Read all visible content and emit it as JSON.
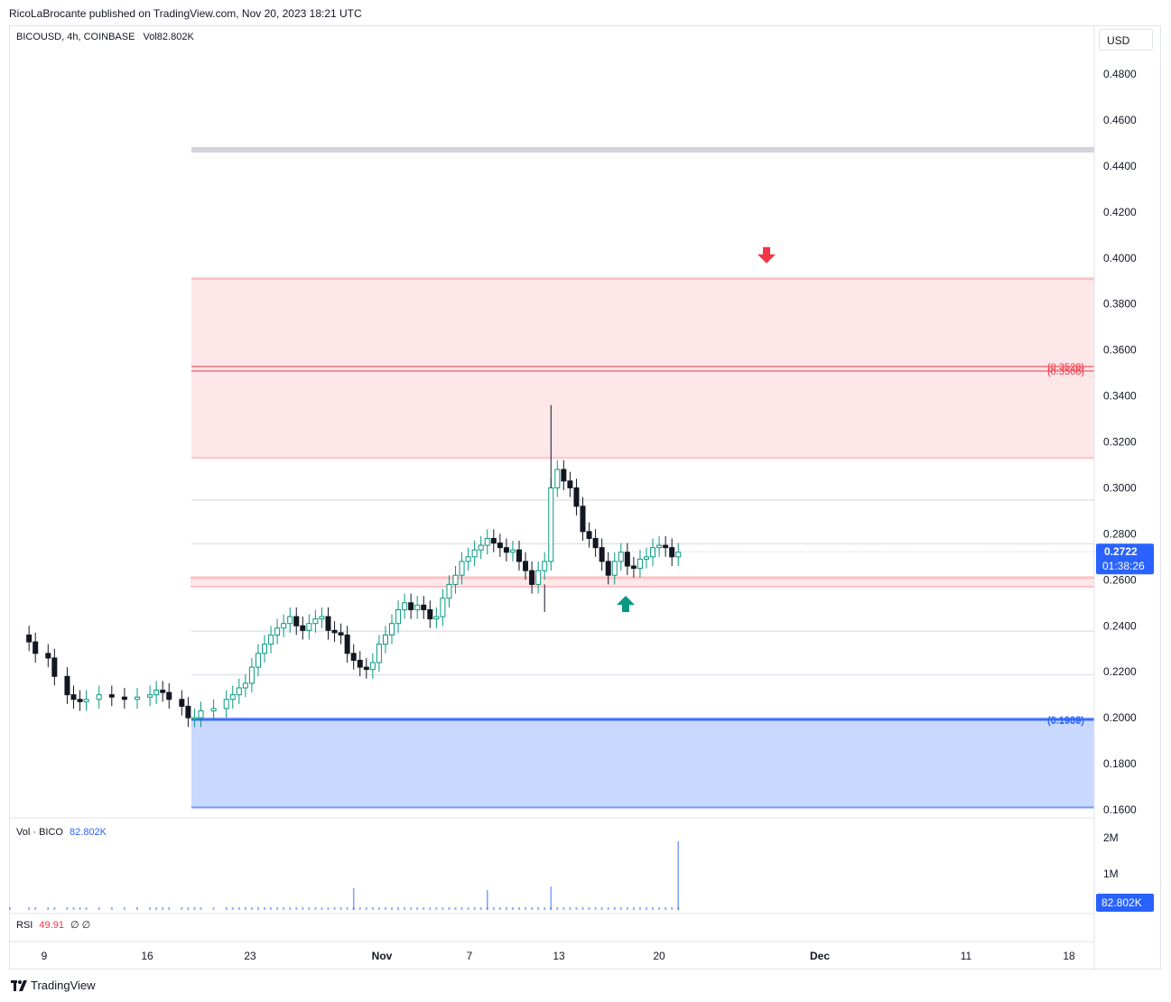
{
  "header": {
    "published_text": "RicoLaBrocante published on TradingView.com, Nov 20, 2023 18:21 UTC"
  },
  "legend": {
    "symbol": "BICOUSD, 4h, COINBASE",
    "volume_label": "Vol",
    "volume_value": "82.802K"
  },
  "price_axis": {
    "currency": "USD",
    "last_price": "0.2722",
    "countdown": "01:38:26"
  },
  "volume_pane": {
    "label": "Vol · BICO",
    "value": "82.802K",
    "ticks": [
      "2M",
      "1M"
    ],
    "last_badge": "82.802K"
  },
  "rsi_pane": {
    "label": "RSI",
    "value": "49.91",
    "extra": "∅ ∅"
  },
  "footer": {
    "brand": "TradingView"
  },
  "colors": {
    "up": "#089981",
    "down": "#131722",
    "resistance_zone": "#f23645",
    "support_zone": "#2962ff",
    "badge": "#2962ff"
  },
  "chart_data": {
    "type": "candlestick",
    "title": "",
    "x_ticks": [
      "9",
      "16",
      "23",
      "Nov",
      "7",
      "13",
      "20",
      "Dec",
      "11",
      "18"
    ],
    "y_ticks": [
      "0.4800",
      "0.4600",
      "0.4400",
      "0.4200",
      "0.4000",
      "0.3800",
      "0.3600",
      "0.3400",
      "0.3200",
      "0.3000",
      "0.2800",
      "0.2600",
      "0.2400",
      "0.2200",
      "0.2000",
      "0.1800",
      "0.1600"
    ],
    "ylim": [
      0.155,
      0.5
    ],
    "grid": false,
    "price_path": [
      [
        10,
        0.236
      ],
      [
        13,
        0.233
      ],
      [
        14,
        0.228
      ],
      [
        16,
        0.226
      ],
      [
        17,
        0.218
      ],
      [
        19,
        0.21
      ],
      [
        20,
        0.208
      ],
      [
        21,
        0.207
      ],
      [
        22,
        0.208
      ],
      [
        24,
        0.21
      ],
      [
        26,
        0.209
      ],
      [
        28,
        0.208
      ],
      [
        30,
        0.209
      ],
      [
        32,
        0.21
      ],
      [
        33,
        0.212
      ],
      [
        34,
        0.211
      ],
      [
        35,
        0.208
      ],
      [
        37,
        0.205
      ],
      [
        38,
        0.2
      ],
      [
        39,
        0.2
      ],
      [
        40,
        0.203
      ],
      [
        42,
        0.204
      ],
      [
        44,
        0.208
      ],
      [
        45,
        0.21
      ],
      [
        46,
        0.213
      ],
      [
        47,
        0.215
      ],
      [
        48,
        0.222
      ],
      [
        49,
        0.228
      ],
      [
        50,
        0.232
      ],
      [
        51,
        0.236
      ],
      [
        52,
        0.239
      ],
      [
        53,
        0.241
      ],
      [
        54,
        0.244
      ],
      [
        55,
        0.24
      ],
      [
        56,
        0.238
      ],
      [
        57,
        0.241
      ],
      [
        58,
        0.243
      ],
      [
        59,
        0.244
      ],
      [
        60,
        0.238
      ],
      [
        61,
        0.237
      ],
      [
        62,
        0.236
      ],
      [
        63,
        0.228
      ],
      [
        64,
        0.225
      ],
      [
        65,
        0.222
      ],
      [
        66,
        0.221
      ],
      [
        67,
        0.224
      ],
      [
        68,
        0.232
      ],
      [
        69,
        0.236
      ],
      [
        70,
        0.241
      ],
      [
        71,
        0.247
      ],
      [
        72,
        0.25
      ],
      [
        73,
        0.247
      ],
      [
        74,
        0.249
      ],
      [
        75,
        0.247
      ],
      [
        76,
        0.243
      ],
      [
        77,
        0.244
      ],
      [
        78,
        0.252
      ],
      [
        79,
        0.258
      ],
      [
        80,
        0.262
      ],
      [
        81,
        0.268
      ],
      [
        82,
        0.27
      ],
      [
        83,
        0.273
      ],
      [
        84,
        0.275
      ],
      [
        85,
        0.278
      ],
      [
        86,
        0.276
      ],
      [
        87,
        0.274
      ],
      [
        88,
        0.272
      ],
      [
        89,
        0.273
      ],
      [
        90,
        0.268
      ],
      [
        91,
        0.264
      ],
      [
        92,
        0.258
      ],
      [
        93,
        0.264
      ],
      [
        94,
        0.268
      ],
      [
        95,
        0.3
      ],
      [
        96,
        0.308
      ],
      [
        97,
        0.303
      ],
      [
        98,
        0.3
      ],
      [
        99,
        0.292
      ],
      [
        100,
        0.281
      ],
      [
        101,
        0.278
      ],
      [
        102,
        0.274
      ],
      [
        103,
        0.268
      ],
      [
        104,
        0.262
      ],
      [
        105,
        0.268
      ],
      [
        106,
        0.272
      ],
      [
        107,
        0.266
      ],
      [
        108,
        0.265
      ],
      [
        109,
        0.269
      ],
      [
        110,
        0.27
      ],
      [
        111,
        0.274
      ],
      [
        112,
        0.275
      ],
      [
        113,
        0.274
      ],
      [
        114,
        0.27
      ],
      [
        115,
        0.272
      ]
    ],
    "spikes": [
      {
        "index": 95,
        "high": 0.336
      },
      {
        "index": 94,
        "low": 0.246
      }
    ],
    "zones": [
      {
        "name": "resistance",
        "from": 0.313,
        "to": 0.391
      },
      {
        "name": "small-resistance",
        "from": 0.257,
        "to": 0.261
      },
      {
        "name": "support",
        "from": 0.161,
        "to": 0.1995
      }
    ],
    "level_lines": [
      0.447,
      0.2947,
      0.2757,
      0.2377,
      0.2187
    ],
    "labeled_levels": [
      {
        "value": 0.3528,
        "label": "(0.3528)",
        "color": "#f23645"
      },
      {
        "value": 0.3508,
        "label": "(0.3508)",
        "color": "#f23645"
      },
      {
        "value": 0.1993,
        "label": "(0.1993)",
        "color": "#2962ff"
      },
      {
        "value": 0.1989,
        "label": "(0.1989)",
        "color": "#2962ff"
      }
    ],
    "arrows": [
      {
        "direction": "down",
        "color": "#f23645",
        "price": 0.4
      },
      {
        "direction": "up",
        "color": "#089981",
        "price": 0.25
      }
    ],
    "volume_spikes": [
      {
        "index": 64,
        "value": 600000
      },
      {
        "index": 85,
        "value": 550000
      },
      {
        "index": 95,
        "value": 650000
      },
      {
        "index": 115,
        "value": 1900000
      }
    ]
  }
}
